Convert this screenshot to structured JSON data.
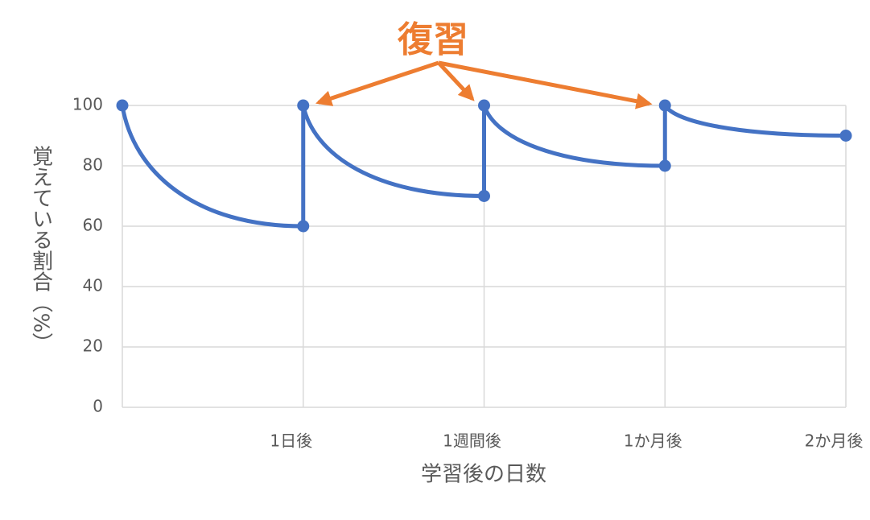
{
  "chart_data": {
    "type": "line",
    "x_label": "学習後の日数",
    "y_label": "覚えている割合（%）",
    "annotation": "復習",
    "annotation_color": "#ed7d31",
    "x": [
      0,
      1,
      1,
      2,
      2,
      3,
      3,
      4
    ],
    "series": [
      {
        "color": "#4472c4",
        "values": [
          100,
          60,
          100,
          70,
          100,
          80,
          100,
          90
        ]
      }
    ],
    "xlim": [
      0,
      4
    ],
    "xticks": [
      {
        "value": 1,
        "label": "1日後"
      },
      {
        "value": 2,
        "label": "1週間後"
      },
      {
        "value": 3,
        "label": "1か月後"
      },
      {
        "value": 4,
        "label": "2か月後"
      }
    ],
    "ylim": [
      0,
      100
    ],
    "yticks": [
      0,
      20,
      40,
      60,
      80,
      100
    ],
    "grid": true
  }
}
